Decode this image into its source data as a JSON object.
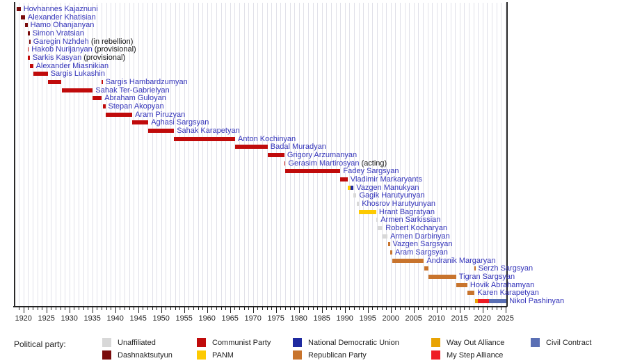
{
  "chart_data": {
    "type": "bar",
    "variant": "gantt-timeline",
    "x_axis": {
      "min": 1918.0,
      "max": 2025.3,
      "tick_min": 1920,
      "tick_max": 2025,
      "tick_step": 5,
      "minor_tick_step": 1,
      "grid": "vertical-yearly"
    },
    "legend_position": "bottom",
    "parties": {
      "unaffiliated": {
        "color": "#d8d8d8"
      },
      "dashnaktsutyun": {
        "color": "#7a0c0c"
      },
      "communist": {
        "color": "#c00b0b"
      },
      "panm": {
        "color": "#fdca01"
      },
      "ndu": {
        "color": "#1f2aa0"
      },
      "republican": {
        "color": "#c8742d"
      },
      "wayout": {
        "color": "#e8a303"
      },
      "mystep": {
        "color": "#ee1c25"
      },
      "civilcontract": {
        "color": "#5a6fb4"
      }
    },
    "people": [
      {
        "name": "Hovhannes Kajaznuni",
        "segments": [
          {
            "start": 1918.5,
            "end": 1919.4,
            "party": "dashnaktsutyun"
          }
        ]
      },
      {
        "name": "Alexander Khatisian",
        "segments": [
          {
            "start": 1919.4,
            "end": 1920.34,
            "party": "dashnaktsutyun"
          }
        ]
      },
      {
        "name": "Hamo Ohanjanyan",
        "segments": [
          {
            "start": 1920.34,
            "end": 1920.9,
            "party": "dashnaktsutyun"
          }
        ]
      },
      {
        "name": "Simon Vratsian",
        "segments": [
          {
            "start": 1920.9,
            "end": 1920.95,
            "party": "dashnaktsutyun"
          },
          {
            "start": 1921.13,
            "end": 1921.26,
            "party": "dashnaktsutyun"
          }
        ]
      },
      {
        "name": "Garegin Nzhdeh",
        "suffix": "(in rebellion)",
        "segments": [
          {
            "start": 1921.26,
            "end": 1921.52,
            "party": "dashnaktsutyun"
          }
        ]
      },
      {
        "name": "Hakob Nurijanyan",
        "suffix": "(provisional)",
        "segments": [
          {
            "start": 1920.92,
            "end": 1920.97,
            "party": "communist"
          }
        ]
      },
      {
        "name": "Sarkis Kasyan",
        "suffix": "(provisional)",
        "segments": [
          {
            "start": 1920.94,
            "end": 1921.39,
            "party": "communist"
          }
        ]
      },
      {
        "name": "Alexander Miasnikian",
        "segments": [
          {
            "start": 1921.39,
            "end": 1922.1,
            "party": "communist"
          }
        ]
      },
      {
        "name": "Sargis Lukashin",
        "segments": [
          {
            "start": 1922.1,
            "end": 1925.3,
            "party": "communist"
          }
        ]
      },
      {
        "name": "Sargis Hambardzumyan",
        "segments": [
          {
            "start": 1925.3,
            "end": 1928.3,
            "party": "communist"
          },
          {
            "start": 1937.05,
            "end": 1937.25,
            "party": "communist"
          }
        ]
      },
      {
        "name": "Sahak Ter-Gabrielyan",
        "segments": [
          {
            "start": 1928.3,
            "end": 1935.1,
            "party": "communist"
          }
        ]
      },
      {
        "name": "Abraham Guloyan",
        "segments": [
          {
            "start": 1935.1,
            "end": 1937.05,
            "party": "communist"
          }
        ]
      },
      {
        "name": "Stepan Akopyan",
        "segments": [
          {
            "start": 1937.25,
            "end": 1937.85,
            "party": "communist"
          }
        ]
      },
      {
        "name": "Aram Piruzyan",
        "segments": [
          {
            "start": 1937.85,
            "end": 1943.7,
            "party": "communist"
          }
        ]
      },
      {
        "name": "Aghasi Sargsyan",
        "segments": [
          {
            "start": 1943.7,
            "end": 1947.2,
            "party": "communist"
          }
        ]
      },
      {
        "name": "Sahak Karapetyan",
        "segments": [
          {
            "start": 1947.2,
            "end": 1952.8,
            "party": "communist"
          }
        ]
      },
      {
        "name": "Anton Kochinyan",
        "segments": [
          {
            "start": 1952.8,
            "end": 1966.1,
            "party": "communist"
          }
        ]
      },
      {
        "name": "Badal Muradyan",
        "segments": [
          {
            "start": 1966.1,
            "end": 1973.2,
            "party": "communist"
          }
        ]
      },
      {
        "name": "Grigory Arzumanyan",
        "segments": [
          {
            "start": 1973.2,
            "end": 1976.85,
            "party": "communist"
          }
        ]
      },
      {
        "name": "Gerasim Martirosyan",
        "suffix": "(acting)",
        "segments": [
          {
            "start": 1976.85,
            "end": 1977.02,
            "party": "communist"
          }
        ]
      },
      {
        "name": "Fadey Sargsyan",
        "segments": [
          {
            "start": 1977.02,
            "end": 1989.05,
            "party": "communist"
          }
        ]
      },
      {
        "name": "Vladimir Markaryants",
        "segments": [
          {
            "start": 1989.05,
            "end": 1990.6,
            "party": "communist"
          }
        ]
      },
      {
        "name": "Vazgen Manukyan",
        "segments": [
          {
            "start": 1990.6,
            "end": 1991.3,
            "party": "panm"
          },
          {
            "start": 1991.3,
            "end": 1991.9,
            "party": "ndu"
          }
        ]
      },
      {
        "name": "Gagik Harutyunyan",
        "segments": [
          {
            "start": 1991.9,
            "end": 1992.55,
            "party": "unaffiliated"
          }
        ]
      },
      {
        "name": "Khosrov Harutyunyan",
        "segments": [
          {
            "start": 1992.55,
            "end": 1993.1,
            "party": "unaffiliated"
          }
        ]
      },
      {
        "name": "Hrant Bagratyan",
        "segments": [
          {
            "start": 1993.1,
            "end": 1996.85,
            "party": "panm"
          }
        ]
      },
      {
        "name": "Armen Sarkissian",
        "segments": [
          {
            "start": 1996.85,
            "end": 1997.2,
            "party": "unaffiliated"
          }
        ]
      },
      {
        "name": "Robert Kocharyan",
        "segments": [
          {
            "start": 1997.2,
            "end": 1998.28,
            "party": "unaffiliated"
          }
        ]
      },
      {
        "name": "Armen Darbinyan",
        "segments": [
          {
            "start": 1998.28,
            "end": 1999.3,
            "party": "unaffiliated"
          }
        ]
      },
      {
        "name": "Vazgen Sargsyan",
        "segments": [
          {
            "start": 1999.44,
            "end": 1999.82,
            "party": "republican"
          }
        ]
      },
      {
        "name": "Aram Sargsyan",
        "segments": [
          {
            "start": 1999.84,
            "end": 2000.35,
            "party": "republican"
          }
        ]
      },
      {
        "name": "Andranik Margaryan",
        "segments": [
          {
            "start": 2000.35,
            "end": 2007.23,
            "party": "republican"
          }
        ]
      },
      {
        "name": "Serzh Sargsyan",
        "segments": [
          {
            "start": 2007.26,
            "end": 2008.27,
            "party": "republican"
          },
          {
            "start": 2018.27,
            "end": 2018.32,
            "party": "republican"
          }
        ]
      },
      {
        "name": "Tigran Sargsyan",
        "segments": [
          {
            "start": 2008.28,
            "end": 2014.26,
            "party": "republican"
          }
        ]
      },
      {
        "name": "Hovik Abrahamyan",
        "segments": [
          {
            "start": 2014.28,
            "end": 2016.7,
            "party": "republican"
          }
        ]
      },
      {
        "name": "Karen Karapetyan",
        "segments": [
          {
            "start": 2016.7,
            "end": 2018.26,
            "party": "republican"
          }
        ]
      },
      {
        "name": "Nikol Pashinyan",
        "segments": [
          {
            "start": 2018.35,
            "end": 2018.95,
            "party": "wayout"
          },
          {
            "start": 2018.95,
            "end": 2021.45,
            "party": "mystep"
          },
          {
            "start": 2021.45,
            "end": 2025.25,
            "party": "civilcontract"
          }
        ]
      }
    ]
  },
  "legend": {
    "title": "Political party:",
    "columns": [
      [
        {
          "label": "Unaffiliated",
          "party": "unaffiliated"
        },
        {
          "label": "Dashnaktsutyun",
          "party": "dashnaktsutyun"
        }
      ],
      [
        {
          "label": "Communist Party",
          "party": "communist"
        },
        {
          "label": "PANM",
          "party": "panm"
        }
      ],
      [
        {
          "label": "National Democratic Union",
          "party": "ndu"
        },
        {
          "label": "Republican Party",
          "party": "republican"
        }
      ],
      [
        {
          "label": "Way Out Alliance",
          "party": "wayout"
        },
        {
          "label": "My Step Alliance",
          "party": "mystep"
        }
      ],
      [
        {
          "label": "Civil Contract",
          "party": "civilcontract"
        }
      ]
    ]
  }
}
